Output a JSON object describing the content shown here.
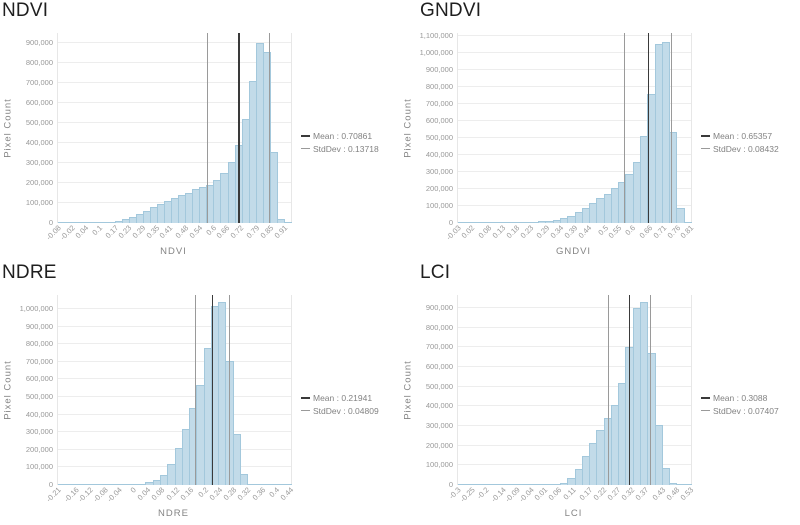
{
  "style": {
    "background": "#ffffff",
    "bar_fill": "#c2dbe9",
    "bar_border": "#a3c8dc",
    "mean_line_color": "#3a3a3a",
    "std_line_color": "#9a9a9a",
    "grid_color": "#ededed",
    "baseline_color": "#d8d8d8",
    "plot_border_color": "#e7e7e7",
    "axis_text_color": "#999999",
    "axis_title_color": "#848484",
    "legend_text_color": "#828282",
    "title_color": "#1f1f1f"
  },
  "chart_data": [
    {
      "type": "bar",
      "subtype": "histogram",
      "title": "NDVI",
      "xlabel": "NDVI",
      "ylabel": "Pixel Count",
      "mean": 0.70861,
      "stddev": 0.13718,
      "legend": {
        "mean_label": "Mean : 0.70861",
        "std_label": "StdDev : 0.13718"
      },
      "x_axis": {
        "min": -0.08,
        "max": 0.94,
        "tick_labels": [
          "-0.08",
          "-0.02",
          "0.04",
          "0.1",
          "0.17",
          "0.23",
          "0.29",
          "0.35",
          "0.41",
          "0.48",
          "0.54",
          "0.6",
          "0.66",
          "0.72",
          "0.79",
          "0.85",
          "0.91"
        ]
      },
      "y_axis": {
        "max": 950000,
        "tick_labels": [
          "0",
          "100,000",
          "200,000",
          "300,000",
          "400,000",
          "500,000",
          "600,000",
          "700,000",
          "800,000",
          "900,000"
        ]
      },
      "bins": [
        1000,
        1000,
        1500,
        2000,
        2000,
        3000,
        4000,
        6000,
        10000,
        18000,
        30000,
        45000,
        62000,
        78000,
        95000,
        110000,
        125000,
        140000,
        152000,
        168000,
        178000,
        190000,
        215000,
        250000,
        305000,
        390000,
        520000,
        710000,
        900000,
        855000,
        355000,
        20000,
        2000
      ]
    },
    {
      "type": "bar",
      "subtype": "histogram",
      "title": "GNDVI",
      "xlabel": "GNDVI",
      "ylabel": "Pixel Count",
      "mean": 0.65357,
      "stddev": 0.08432,
      "legend": {
        "mean_label": "Mean : 0.65357",
        "std_label": "StdDev : 0.08432"
      },
      "x_axis": {
        "min": -0.03,
        "max": 0.81,
        "tick_labels": [
          "-0.03",
          "0.02",
          "0.08",
          "0.13",
          "0.18",
          "0.23",
          "0.29",
          "0.34",
          "0.39",
          "0.44",
          "0.5",
          "0.55",
          "0.6",
          "0.66",
          "0.71",
          "0.76",
          "0.81"
        ]
      },
      "y_axis": {
        "max": 1115000,
        "tick_labels": [
          "0",
          "100,000",
          "200,000",
          "300,000",
          "400,000",
          "500,000",
          "600,000",
          "700,000",
          "800,000",
          "900,000",
          "1,000,000",
          "1,100,000"
        ]
      },
      "bins": [
        1000,
        1000,
        1000,
        1500,
        2000,
        2500,
        3000,
        4000,
        5000,
        6000,
        8000,
        10000,
        14000,
        20000,
        28000,
        40000,
        65000,
        90000,
        120000,
        148000,
        172000,
        205000,
        240000,
        285000,
        360000,
        510000,
        760000,
        1050000,
        1065000,
        535000,
        90000,
        2000
      ]
    },
    {
      "type": "bar",
      "subtype": "histogram",
      "title": "NDRE",
      "xlabel": "NDRE",
      "ylabel": "Pixel Count",
      "mean": 0.21941,
      "stddev": 0.04809,
      "legend": {
        "mean_label": "Mean : 0.21941",
        "std_label": "StdDev : 0.04809"
      },
      "x_axis": {
        "min": -0.21,
        "max": 0.44,
        "tick_labels": [
          "-0.21",
          "-0.16",
          "-0.12",
          "-0.08",
          "-0.04",
          "0",
          "0.04",
          "0.08",
          "0.12",
          "0.16",
          "0.2",
          "0.24",
          "0.28",
          "0.32",
          "0.36",
          "0.4",
          "0.44"
        ]
      },
      "y_axis": {
        "max": 1080000,
        "tick_labels": [
          "0",
          "100,000",
          "200,000",
          "300,000",
          "400,000",
          "500,000",
          "600,000",
          "700,000",
          "800,000",
          "900,000",
          "1,000,000"
        ]
      },
      "bins": [
        500,
        500,
        500,
        500,
        500,
        500,
        500,
        500,
        1000,
        1000,
        2000,
        5000,
        15000,
        30000,
        55000,
        120000,
        210000,
        320000,
        440000,
        570000,
        780000,
        1020000,
        1040000,
        705000,
        290000,
        65000,
        8000,
        500,
        500,
        500,
        500,
        500
      ]
    },
    {
      "type": "bar",
      "subtype": "histogram",
      "title": "LCI",
      "xlabel": "LCI",
      "ylabel": "Pixel Count",
      "mean": 0.3088,
      "stddev": 0.07407,
      "legend": {
        "mean_label": "Mean : 0.3088",
        "std_label": "StdDev : 0.07407"
      },
      "x_axis": {
        "min": -0.3,
        "max": 0.53,
        "tick_labels": [
          "-0.3",
          "-0.25",
          "-0.2",
          "-0.14",
          "-0.09",
          "-0.04",
          "0.01",
          "0.06",
          "0.11",
          "0.17",
          "0.22",
          "0.27",
          "0.32",
          "0.37",
          "0.43",
          "0.48",
          "0.53"
        ]
      },
      "y_axis": {
        "max": 965000,
        "tick_labels": [
          "0",
          "100,000",
          "200,000",
          "300,000",
          "400,000",
          "500,000",
          "600,000",
          "700,000",
          "800,000",
          "900,000"
        ]
      },
      "bins": [
        500,
        500,
        500,
        500,
        500,
        500,
        500,
        500,
        500,
        500,
        500,
        500,
        1000,
        3000,
        8000,
        35000,
        80000,
        145000,
        215000,
        280000,
        340000,
        405000,
        520000,
        700000,
        900000,
        930000,
        670000,
        305000,
        85000,
        10000,
        1000,
        500
      ]
    }
  ]
}
